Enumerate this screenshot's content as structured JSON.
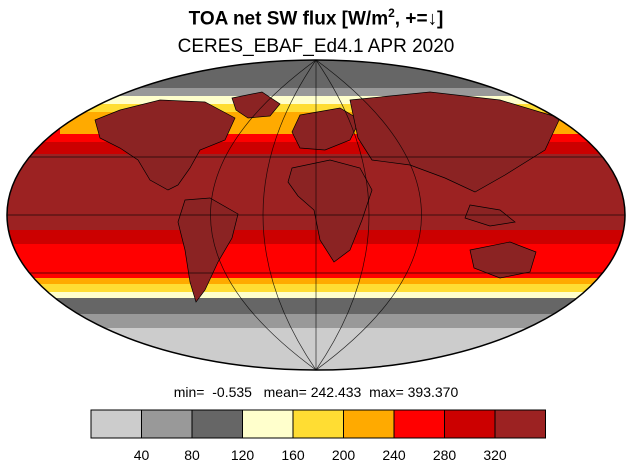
{
  "title": {
    "main_before": "TOA net SW flux [W/m",
    "sup": "2",
    "main_after": ", +=↓]"
  },
  "subtitle": "CERES_EBAF_Ed4.1 APR 2020",
  "stats": {
    "min_label": "min=",
    "min_value": "-0.535",
    "mean_label": "mean=",
    "mean_value": "242.433",
    "max_label": "max=",
    "max_value": "393.370"
  },
  "colorbar": {
    "colors": [
      "#cccccc",
      "#999999",
      "#666666",
      "#ffffcc",
      "#ffdd33",
      "#ffaa00",
      "#ff0000",
      "#cc0000",
      "#9c2222"
    ],
    "tick_labels": [
      "40",
      "80",
      "120",
      "160",
      "200",
      "240",
      "280",
      "320"
    ]
  },
  "map": {
    "projection": "Mollweide",
    "land_fill": "#8b2323",
    "outline_color": "#000000"
  }
}
